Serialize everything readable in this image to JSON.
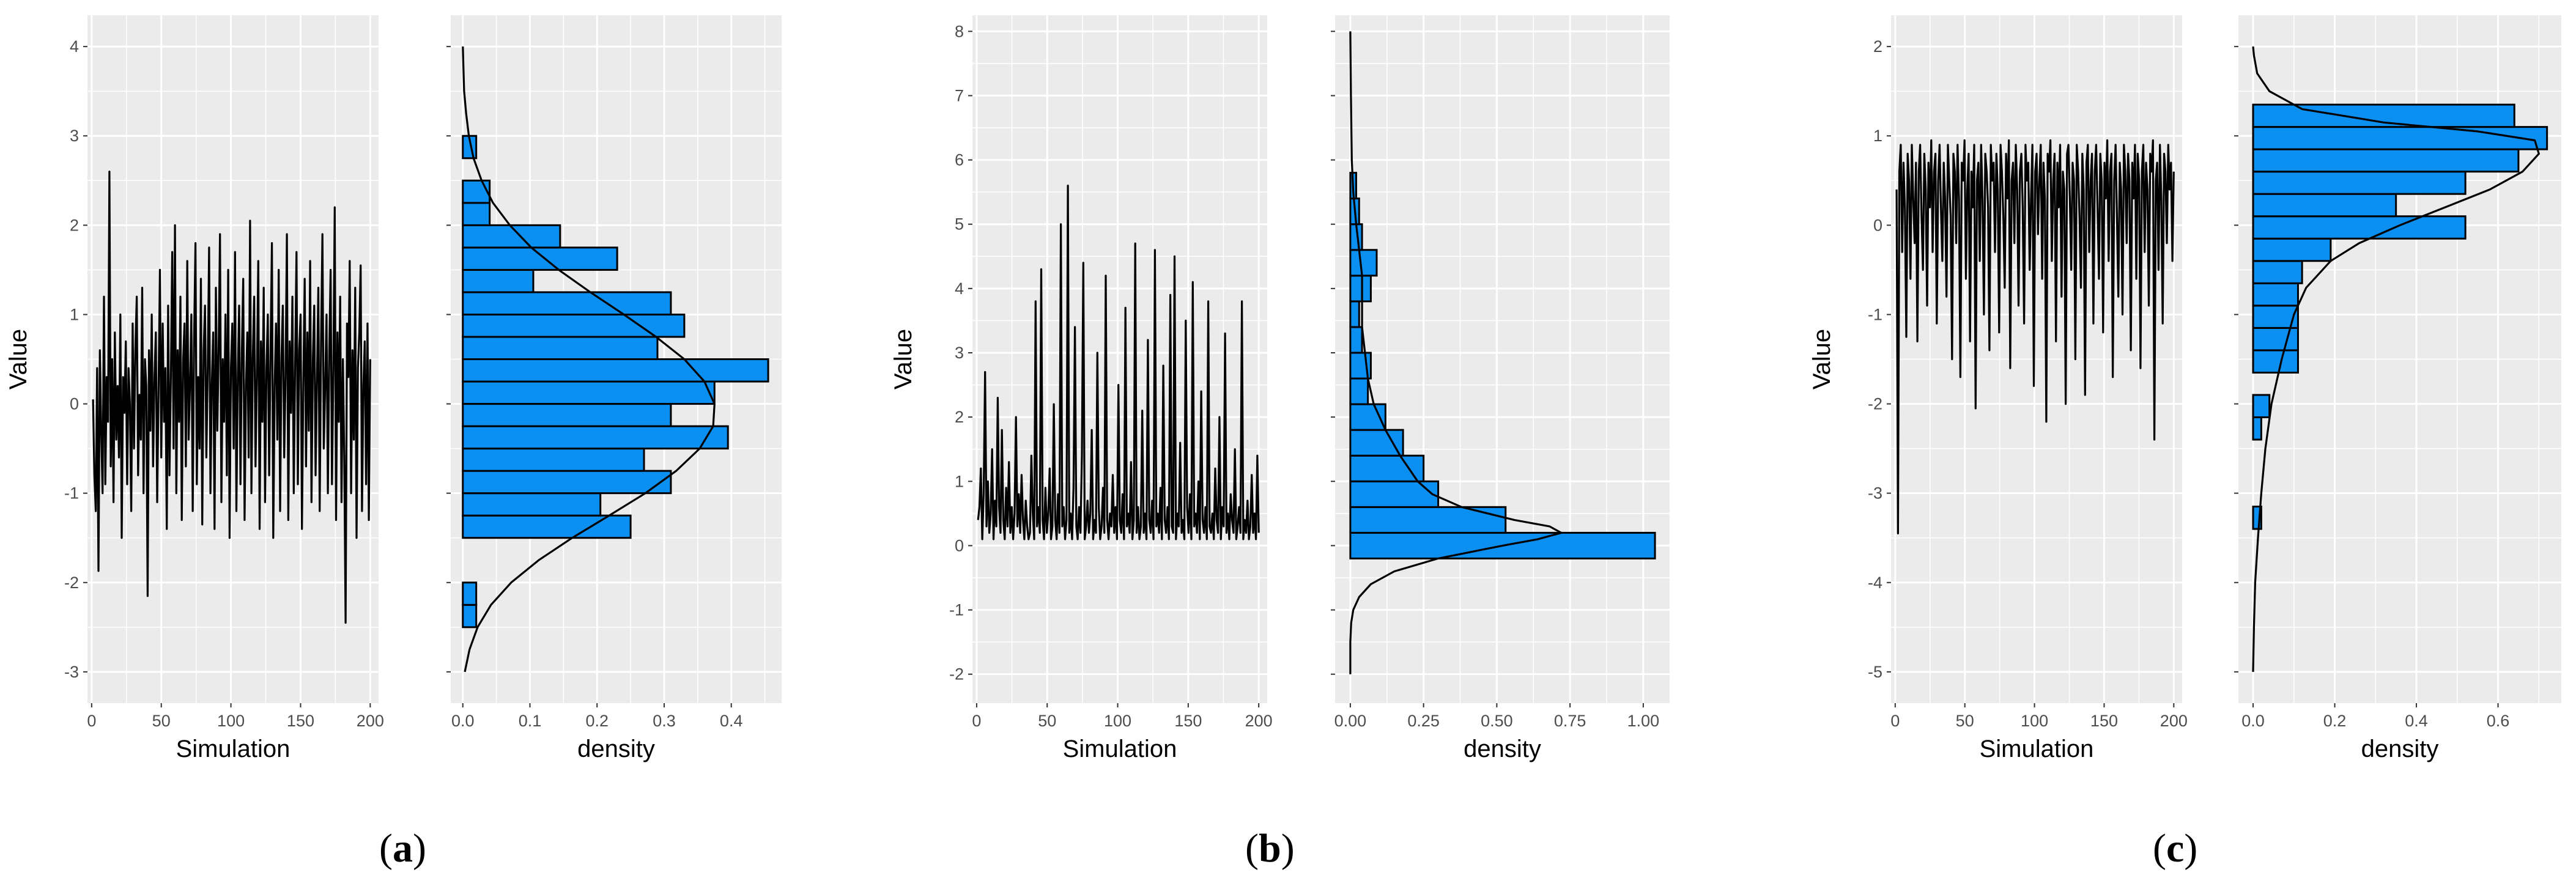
{
  "figure": {
    "panel_labels": [
      {
        "open": "(",
        "letter": "a",
        "close": ")"
      },
      {
        "open": "(",
        "letter": "b",
        "close": ")"
      },
      {
        "open": "(",
        "letter": "c",
        "close": ")"
      }
    ]
  },
  "colors": {
    "panel_background": "#ebebeb",
    "grid_major": "#ffffff",
    "bar_fill": "#0b8ff0",
    "bar_stroke": "#000000",
    "line": "#000000",
    "tick_text": "#4d4d4d"
  },
  "chart_data": [
    {
      "id": "a-trace",
      "type": "line",
      "xlabel": "Simulation",
      "ylabel": "Value",
      "xlim": [
        -3,
        206
      ],
      "ylim": [
        -3.35,
        4.35
      ],
      "xticks": [
        0,
        50,
        100,
        150,
        200
      ],
      "yticks": [
        -3,
        -2,
        -1,
        0,
        1,
        2,
        3,
        4
      ],
      "n": 200,
      "y_min": -2.45,
      "y_max": 2.6,
      "y": [
        0.05,
        -0.8,
        -1.2,
        0.4,
        -1.87,
        0.6,
        -0.3,
        -1.0,
        1.2,
        -0.9,
        0.3,
        -0.2,
        2.6,
        -0.7,
        0.5,
        -1.1,
        0.8,
        -0.4,
        0.2,
        -0.6,
        1.0,
        -1.5,
        0.3,
        -0.1,
        0.7,
        -0.9,
        0.4,
        0.0,
        -1.2,
        0.9,
        -0.5,
        0.6,
        1.2,
        -0.8,
        0.1,
        -0.4,
        1.3,
        -1.0,
        0.5,
        0.2,
        -2.15,
        0.6,
        -0.3,
        1.0,
        -0.7,
        0.3,
        0.8,
        -1.1,
        0.2,
        1.5,
        -0.6,
        0.9,
        -0.2,
        0.4,
        -1.4,
        1.1,
        -0.8,
        0.3,
        1.7,
        -0.5,
        2.0,
        -1.0,
        0.6,
        -0.2,
        1.2,
        -1.3,
        0.5,
        0.9,
        -0.7,
        1.6,
        -0.4,
        0.2,
        1.0,
        -1.2,
        0.7,
        1.8,
        -0.9,
        0.3,
        -0.5,
        1.4,
        -1.35,
        0.6,
        1.1,
        -0.6,
        0.4,
        1.75,
        -1.0,
        0.2,
        0.8,
        -1.4,
        1.3,
        -0.3,
        0.6,
        1.9,
        -1.1,
        0.5,
        -0.2,
        1.0,
        -0.8,
        1.5,
        -1.5,
        0.4,
        0.9,
        -0.5,
        1.7,
        -1.2,
        0.3,
        1.1,
        -0.9,
        0.6,
        1.4,
        -1.3,
        0.2,
        0.8,
        -0.6,
        2.05,
        -1.0,
        0.5,
        1.2,
        -0.7,
        0.3,
        1.6,
        -1.4,
        0.7,
        -0.2,
        1.3,
        -1.1,
        0.4,
        1.0,
        -0.8,
        0.6,
        1.8,
        -1.5,
        0.2,
        0.9,
        -0.4,
        1.5,
        -1.2,
        0.5,
        1.1,
        -0.6,
        0.3,
        1.9,
        -1.3,
        0.7,
        -0.1,
        1.2,
        -1.0,
        0.4,
        1.7,
        -0.9,
        0.6,
        1.0,
        -1.4,
        0.2,
        1.4,
        -0.7,
        0.8,
        -0.3,
        1.6,
        -1.1,
        0.5,
        1.1,
        -0.8,
        0.3,
        1.3,
        -1.2,
        0.7,
        1.9,
        -0.5,
        0.2,
        1.0,
        -1.0,
        0.6,
        1.5,
        -0.9,
        0.4,
        2.2,
        -1.3,
        0.8,
        -0.2,
        1.2,
        -1.1,
        0.5,
        -0.6,
        -2.45,
        0.9,
        0.3,
        1.6,
        -1.0,
        0.6,
        -0.4,
        1.3,
        -1.5,
        0.4,
        0.8,
        1.55,
        -1.2,
        0.2,
        0.7,
        -0.9,
        0.9,
        -1.3,
        0.5
      ]
    },
    {
      "id": "a-density",
      "type": "bar",
      "orientation": "horizontal",
      "xlabel": "density",
      "ylabel": "",
      "xlim": [
        -0.018,
        0.475
      ],
      "ylim": [
        -3.35,
        4.35
      ],
      "xticks": [
        0.0,
        0.1,
        0.2,
        0.3,
        0.4
      ],
      "xtick_labels": [
        "0.0",
        "0.1",
        "0.2",
        "0.3",
        "0.4"
      ],
      "yticks": [
        -3,
        -2,
        -1,
        0,
        1,
        2,
        3,
        4
      ],
      "bins": [
        {
          "y0": -2.5,
          "y1": -2.25,
          "value": 0.02
        },
        {
          "y0": -2.25,
          "y1": -2.0,
          "value": 0.02
        },
        {
          "y0": -1.5,
          "y1": -1.25,
          "value": 0.25
        },
        {
          "y0": -1.25,
          "y1": -1.0,
          "value": 0.205
        },
        {
          "y0": -1.0,
          "y1": -0.75,
          "value": 0.31
        },
        {
          "y0": -0.75,
          "y1": -0.5,
          "value": 0.27
        },
        {
          "y0": -0.5,
          "y1": -0.25,
          "value": 0.395
        },
        {
          "y0": -0.25,
          "y1": 0.0,
          "value": 0.31
        },
        {
          "y0": 0.0,
          "y1": 0.25,
          "value": 0.375
        },
        {
          "y0": 0.25,
          "y1": 0.5,
          "value": 0.455
        },
        {
          "y0": 0.5,
          "y1": 0.75,
          "value": 0.29
        },
        {
          "y0": 0.75,
          "y1": 1.0,
          "value": 0.33
        },
        {
          "y0": 1.0,
          "y1": 1.25,
          "value": 0.31
        },
        {
          "y0": 1.25,
          "y1": 1.5,
          "value": 0.105
        },
        {
          "y0": 1.5,
          "y1": 1.75,
          "value": 0.23
        },
        {
          "y0": 1.75,
          "y1": 2.0,
          "value": 0.145
        },
        {
          "y0": 2.0,
          "y1": 2.25,
          "value": 0.04
        },
        {
          "y0": 2.25,
          "y1": 2.5,
          "value": 0.04
        },
        {
          "y0": 2.75,
          "y1": 3.0,
          "value": 0.02
        }
      ],
      "density_curve": {
        "y": [
          -3.0,
          -2.75,
          -2.5,
          -2.25,
          -2.0,
          -1.75,
          -1.5,
          -1.25,
          -1.0,
          -0.75,
          -0.5,
          -0.25,
          0.0,
          0.25,
          0.5,
          0.75,
          1.0,
          1.25,
          1.5,
          1.75,
          2.0,
          2.25,
          2.5,
          2.75,
          3.0,
          3.25,
          3.5,
          3.75,
          4.0
        ],
        "density": [
          0.003,
          0.01,
          0.022,
          0.042,
          0.072,
          0.113,
          0.163,
          0.218,
          0.272,
          0.318,
          0.353,
          0.373,
          0.375,
          0.36,
          0.33,
          0.288,
          0.24,
          0.19,
          0.143,
          0.102,
          0.07,
          0.045,
          0.028,
          0.016,
          0.009,
          0.005,
          0.002,
          0.001,
          0.0
        ]
      }
    },
    {
      "id": "b-trace",
      "type": "line",
      "xlabel": "Simulation",
      "ylabel": "Value",
      "xlim": [
        -3,
        206
      ],
      "ylim": [
        -2.45,
        8.25
      ],
      "xticks": [
        0,
        50,
        100,
        150,
        200
      ],
      "yticks": [
        -2,
        -1,
        0,
        1,
        2,
        3,
        4,
        5,
        6,
        7,
        8
      ],
      "n": 200,
      "y_min": 0.05,
      "y_max": 5.6,
      "y": [
        0.4,
        0.6,
        1.2,
        0.1,
        0.8,
        2.7,
        0.3,
        1.0,
        0.2,
        0.5,
        1.5,
        0.1,
        0.7,
        0.3,
        2.3,
        0.6,
        0.2,
        1.8,
        0.4,
        0.1,
        0.9,
        0.3,
        1.3,
        0.2,
        0.6,
        0.1,
        0.5,
        2.0,
        0.3,
        0.8,
        0.2,
        1.1,
        0.4,
        0.1,
        0.7,
        0.3,
        0.1,
        0.2,
        1.4,
        0.5,
        0.1,
        3.8,
        0.3,
        0.6,
        0.2,
        4.3,
        0.4,
        0.1,
        0.9,
        0.2,
        0.5,
        1.2,
        0.1,
        0.3,
        2.2,
        0.4,
        0.1,
        0.8,
        0.2,
        5.0,
        0.3,
        0.6,
        0.1,
        0.4,
        5.6,
        0.2,
        0.5,
        0.1,
        0.9,
        3.4,
        0.3,
        0.1,
        0.6,
        0.2,
        1.4,
        4.4,
        0.1,
        0.3,
        0.7,
        0.2,
        0.5,
        1.8,
        0.1,
        0.4,
        0.2,
        3.0,
        0.6,
        0.1,
        0.3,
        0.9,
        0.2,
        4.2,
        0.4,
        0.1,
        0.5,
        0.3,
        1.1,
        0.2,
        0.6,
        0.1,
        2.5,
        0.4,
        0.2,
        0.8,
        0.1,
        3.7,
        0.3,
        0.5,
        0.2,
        1.3,
        0.1,
        0.4,
        4.7,
        0.2,
        0.6,
        0.1,
        0.3,
        2.1,
        0.2,
        0.5,
        0.1,
        3.2,
        0.4,
        0.2,
        0.7,
        0.1,
        4.6,
        0.3,
        0.5,
        0.2,
        0.9,
        0.1,
        2.8,
        0.4,
        0.2,
        0.6,
        0.1,
        3.9,
        0.3,
        0.2,
        4.5,
        0.1,
        0.5,
        0.3,
        1.6,
        0.2,
        0.4,
        0.1,
        3.5,
        0.6,
        0.2,
        0.8,
        0.1,
        4.1,
        0.3,
        0.5,
        0.2,
        1.0,
        0.1,
        2.4,
        0.4,
        0.2,
        0.6,
        0.1,
        3.8,
        0.3,
        0.2,
        0.5,
        0.1,
        1.2,
        0.4,
        0.2,
        2.0,
        0.1,
        0.6,
        0.3,
        3.3,
        0.2,
        0.5,
        0.1,
        0.8,
        0.4,
        0.2,
        1.5,
        0.1,
        0.3,
        0.6,
        0.2,
        3.8,
        0.1,
        0.4,
        0.2,
        0.7,
        0.1,
        0.3,
        1.1,
        0.2,
        0.5,
        0.1,
        1.4,
        0.2
      ]
    },
    {
      "id": "b-density",
      "type": "bar",
      "orientation": "horizontal",
      "xlabel": "density",
      "ylabel": "",
      "xlim": [
        -0.052,
        1.09
      ],
      "ylim": [
        -2.45,
        8.25
      ],
      "xticks": [
        0.0,
        0.25,
        0.5,
        0.75,
        1.0
      ],
      "xtick_labels": [
        "0.00",
        "0.25",
        "0.50",
        "0.75",
        "1.00"
      ],
      "yticks": [
        -2,
        -1,
        0,
        1,
        2,
        3,
        4,
        5,
        6,
        7,
        8
      ],
      "bins": [
        {
          "y0": -0.2,
          "y1": 0.2,
          "value": 1.04
        },
        {
          "y0": 0.2,
          "y1": 0.6,
          "value": 0.53
        },
        {
          "y0": 0.6,
          "y1": 1.0,
          "value": 0.3
        },
        {
          "y0": 1.0,
          "y1": 1.4,
          "value": 0.25
        },
        {
          "y0": 1.4,
          "y1": 1.8,
          "value": 0.18
        },
        {
          "y0": 1.8,
          "y1": 2.2,
          "value": 0.12
        },
        {
          "y0": 2.2,
          "y1": 2.6,
          "value": 0.06
        },
        {
          "y0": 2.6,
          "y1": 3.0,
          "value": 0.07
        },
        {
          "y0": 3.0,
          "y1": 3.4,
          "value": 0.04
        },
        {
          "y0": 3.4,
          "y1": 3.8,
          "value": 0.03
        },
        {
          "y0": 3.8,
          "y1": 4.2,
          "value": 0.07
        },
        {
          "y0": 4.2,
          "y1": 4.6,
          "value": 0.09
        },
        {
          "y0": 4.6,
          "y1": 5.0,
          "value": 0.04
        },
        {
          "y0": 5.0,
          "y1": 5.4,
          "value": 0.03
        },
        {
          "y0": 5.4,
          "y1": 5.8,
          "value": 0.02
        }
      ],
      "density_curve": {
        "y": [
          -2.0,
          -1.5,
          -1.2,
          -1.0,
          -0.8,
          -0.6,
          -0.4,
          -0.2,
          0.0,
          0.1,
          0.2,
          0.3,
          0.4,
          0.6,
          0.8,
          1.0,
          1.4,
          1.8,
          2.2,
          2.6,
          3.0,
          3.4,
          3.8,
          4.2,
          4.6,
          5.0,
          5.5,
          6.0,
          7.0,
          8.0
        ],
        "density": [
          0.0,
          0.0,
          0.003,
          0.01,
          0.03,
          0.07,
          0.15,
          0.3,
          0.52,
          0.64,
          0.72,
          0.68,
          0.56,
          0.38,
          0.28,
          0.23,
          0.17,
          0.12,
          0.08,
          0.06,
          0.05,
          0.04,
          0.04,
          0.04,
          0.03,
          0.02,
          0.01,
          0.005,
          0.002,
          0.0
        ]
      }
    },
    {
      "id": "c-trace",
      "type": "line",
      "xlabel": "Simulation",
      "ylabel": "Value",
      "xlim": [
        -3,
        206
      ],
      "ylim": [
        -5.35,
        2.35
      ],
      "xticks": [
        0,
        50,
        100,
        150,
        200
      ],
      "yticks": [
        -5,
        -4,
        -3,
        -2,
        -1,
        0,
        1,
        2
      ],
      "n": 200,
      "y_min": -3.45,
      "y_max": 1.0,
      "y": [
        0.4,
        -3.45,
        0.6,
        0.9,
        -0.3,
        0.7,
        0.2,
        -1.25,
        0.8,
        0.5,
        -0.6,
        0.9,
        0.3,
        -0.2,
        0.7,
        -1.3,
        0.6,
        0.9,
        0.1,
        -0.5,
        0.8,
        0.4,
        -0.9,
        0.7,
        0.2,
        0.95,
        -0.3,
        0.6,
        0.8,
        -1.1,
        0.5,
        0.9,
        0.2,
        -0.4,
        0.7,
        0.3,
        -0.8,
        0.9,
        0.5,
        0.1,
        -1.5,
        0.8,
        0.6,
        -0.2,
        0.9,
        0.3,
        -1.7,
        0.7,
        0.5,
        0.95,
        -0.6,
        0.4,
        0.8,
        -1.3,
        0.6,
        0.2,
        0.9,
        -2.05,
        0.5,
        0.7,
        -0.4,
        0.9,
        0.3,
        -1.0,
        0.8,
        0.6,
        0.2,
        -1.4,
        0.9,
        0.5,
        0.7,
        -0.3,
        0.8,
        0.4,
        -1.2,
        0.9,
        0.6,
        0.1,
        -0.7,
        0.8,
        0.3,
        0.95,
        -1.6,
        0.5,
        0.7,
        -0.2,
        0.9,
        0.4,
        -0.9,
        0.6,
        0.8,
        0.2,
        -1.1,
        0.9,
        0.5,
        0.7,
        -0.5,
        0.3,
        0.9,
        -1.8,
        0.6,
        0.8,
        -0.1,
        0.5,
        0.9,
        -0.6,
        0.7,
        0.3,
        -2.2,
        0.8,
        0.6,
        0.95,
        -0.4,
        0.5,
        0.8,
        -1.3,
        0.7,
        0.2,
        0.9,
        -0.8,
        0.6,
        0.4,
        -2.0,
        0.8,
        0.9,
        0.3,
        -0.5,
        0.7,
        0.5,
        -1.5,
        0.9,
        0.6,
        0.1,
        -0.7,
        0.8,
        0.4,
        -1.9,
        0.7,
        0.9,
        -0.3,
        0.5,
        0.8,
        -1.1,
        0.6,
        0.9,
        0.2,
        -0.6,
        0.8,
        0.5,
        -1.2,
        0.7,
        0.3,
        0.95,
        -0.4,
        0.6,
        0.8,
        -1.7,
        0.5,
        0.9,
        0.1,
        -0.8,
        0.7,
        0.4,
        -1.0,
        0.9,
        0.6,
        -0.2,
        0.8,
        0.5,
        -1.4,
        0.7,
        0.3,
        0.9,
        -0.6,
        0.8,
        0.5,
        -1.6,
        0.6,
        0.9,
        -0.3,
        0.7,
        0.4,
        -0.9,
        0.8,
        0.6,
        0.95,
        -2.4,
        0.5,
        0.7,
        -0.5,
        0.9,
        0.3,
        -1.1,
        0.8,
        0.6,
        -0.2,
        0.9,
        0.4,
        0.7,
        -0.4,
        0.6
      ]
    },
    {
      "id": "c-density",
      "type": "bar",
      "orientation": "horizontal",
      "xlabel": "density",
      "ylabel": "",
      "xlim": [
        -0.036,
        0.755
      ],
      "ylim": [
        -5.35,
        2.35
      ],
      "xticks": [
        0.0,
        0.2,
        0.4,
        0.6
      ],
      "xtick_labels": [
        "0.0",
        "0.2",
        "0.4",
        "0.6"
      ],
      "yticks": [
        -5,
        -4,
        -3,
        -2,
        -1,
        0,
        1,
        2
      ],
      "bins": [
        {
          "y0": -3.4,
          "y1": -3.15,
          "value": 0.02
        },
        {
          "y0": -2.4,
          "y1": -2.15,
          "value": 0.02
        },
        {
          "y0": -2.15,
          "y1": -1.9,
          "value": 0.04
        },
        {
          "y0": -1.65,
          "y1": -1.4,
          "value": 0.11
        },
        {
          "y0": -1.4,
          "y1": -1.15,
          "value": 0.11
        },
        {
          "y0": -1.15,
          "y1": -0.9,
          "value": 0.11
        },
        {
          "y0": -0.9,
          "y1": -0.65,
          "value": 0.11
        },
        {
          "y0": -0.65,
          "y1": -0.4,
          "value": 0.12
        },
        {
          "y0": -0.4,
          "y1": -0.15,
          "value": 0.19
        },
        {
          "y0": -0.15,
          "y1": 0.1,
          "value": 0.52
        },
        {
          "y0": 0.1,
          "y1": 0.35,
          "value": 0.35
        },
        {
          "y0": 0.35,
          "y1": 0.6,
          "value": 0.52
        },
        {
          "y0": 0.6,
          "y1": 0.85,
          "value": 0.65
        },
        {
          "y0": 0.85,
          "y1": 1.1,
          "value": 0.72
        },
        {
          "y0": 1.1,
          "y1": 1.35,
          "value": 0.64
        }
      ],
      "density_curve": {
        "y": [
          -5.0,
          -4.5,
          -4.0,
          -3.5,
          -3.0,
          -2.5,
          -2.0,
          -1.5,
          -1.0,
          -0.7,
          -0.4,
          -0.2,
          0.0,
          0.2,
          0.4,
          0.6,
          0.8,
          0.95,
          1.05,
          1.15,
          1.3,
          1.5,
          1.7,
          1.9,
          2.0
        ],
        "density": [
          0.0,
          0.002,
          0.005,
          0.012,
          0.02,
          0.03,
          0.045,
          0.07,
          0.1,
          0.13,
          0.19,
          0.26,
          0.36,
          0.47,
          0.58,
          0.66,
          0.7,
          0.69,
          0.55,
          0.32,
          0.12,
          0.04,
          0.01,
          0.002,
          0.0
        ]
      }
    }
  ]
}
